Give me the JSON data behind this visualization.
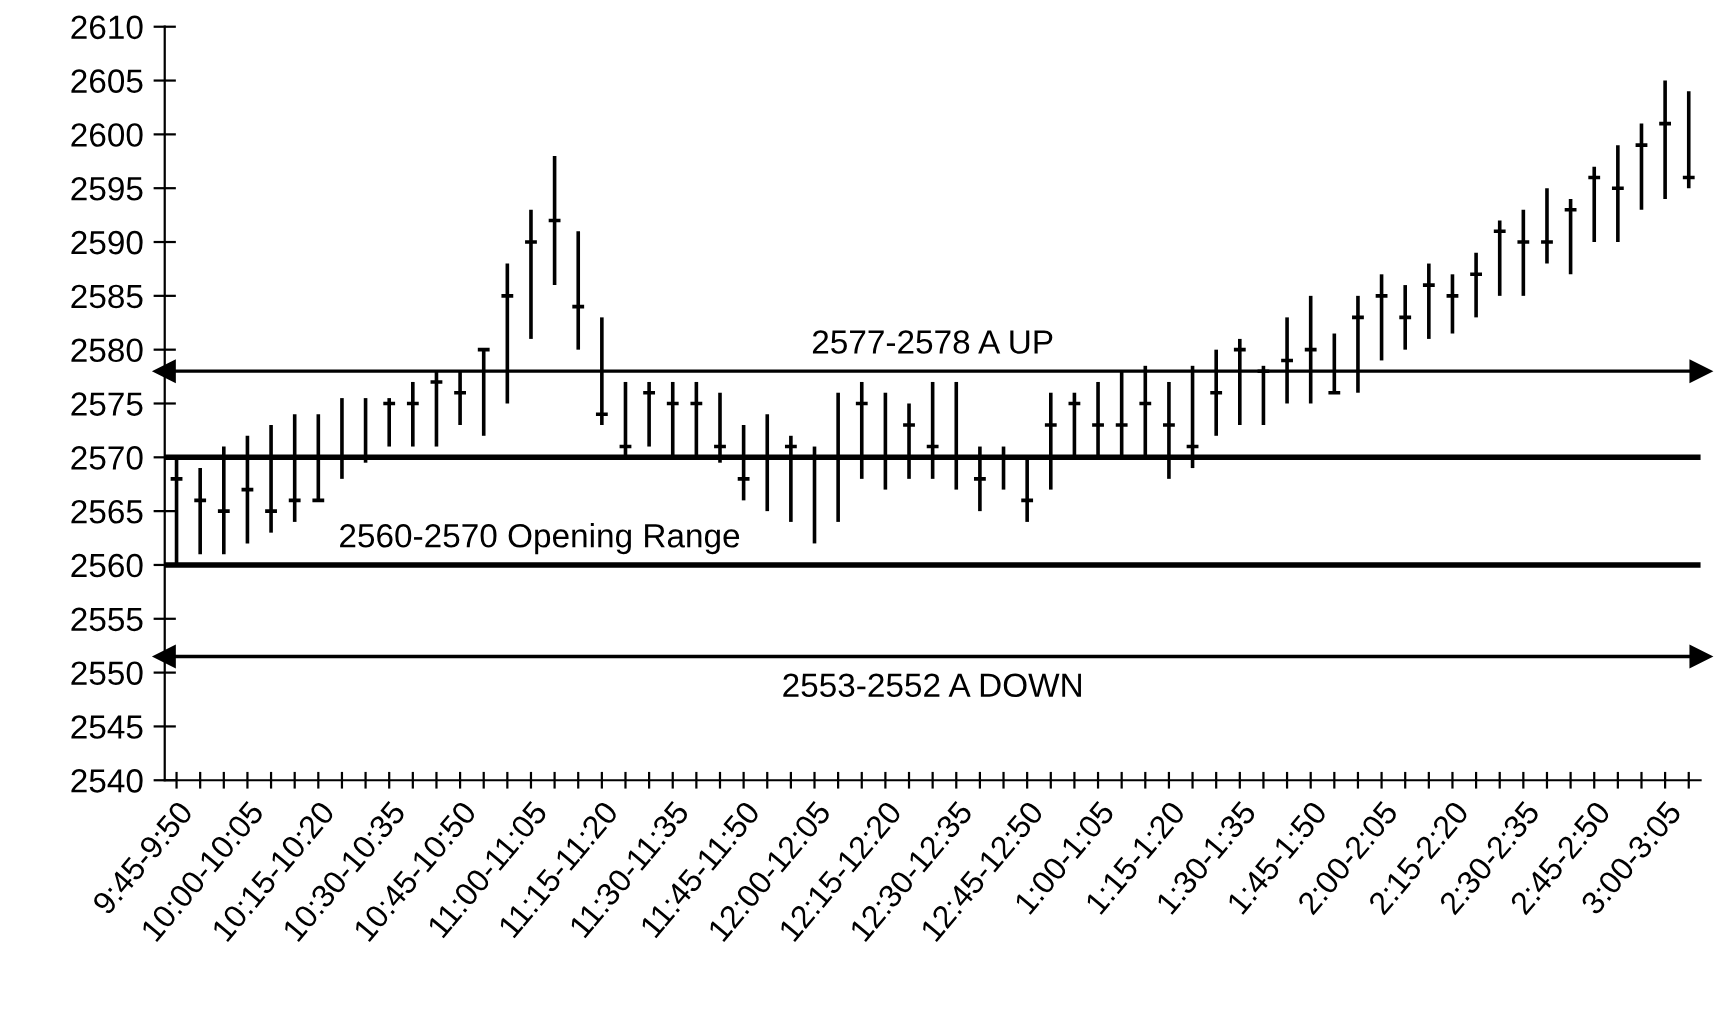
{
  "chart_data": {
    "type": "candlestick",
    "categories": [
      "9:45-9:50",
      null,
      null,
      "10:00-10:05",
      null,
      null,
      "10:15-10:20",
      null,
      null,
      "10:30-10:35",
      null,
      null,
      "10:45-10:50",
      null,
      null,
      "11:00-11:05",
      null,
      null,
      "11:15-11:20",
      null,
      null,
      "11:30-11:35",
      null,
      null,
      "11:45-11:50",
      null,
      null,
      "12:00-12:05",
      null,
      null,
      "12:15-12:20",
      null,
      null,
      "12:30-12:35",
      null,
      null,
      "12:45-12:50",
      null,
      null,
      "1:00-1:05",
      null,
      null,
      "1:15-1:20",
      null,
      null,
      "1:30-1:35",
      null,
      null,
      "1:45-1:50",
      null,
      null,
      "2:00-2:05",
      null,
      null,
      "2:15-2:20",
      null,
      null,
      "2:30-2:35",
      null,
      null,
      "2:45-2:50",
      null,
      null,
      "3:00-3:05",
      null
    ],
    "ohlc": [
      [
        2568,
        2570,
        2560,
        2568
      ],
      [
        2566,
        2569,
        2561,
        2566
      ],
      [
        2565,
        2571,
        2561,
        2565
      ],
      [
        2567,
        2572,
        2562,
        2567
      ],
      [
        2565,
        2573,
        2563,
        2565
      ],
      [
        2566,
        2574,
        2564,
        2566
      ],
      [
        2566,
        2574,
        2566,
        2566
      ],
      [
        2570,
        2575.5,
        2568,
        2570
      ],
      [
        2570,
        2575.5,
        2569.5,
        2570
      ],
      [
        2575,
        2575.5,
        2571,
        2575
      ],
      [
        2575,
        2577,
        2571,
        2575
      ],
      [
        2577,
        2578,
        2571,
        2577
      ],
      [
        2576,
        2578,
        2573,
        2576
      ],
      [
        2580,
        2580,
        2572,
        2580
      ],
      [
        2585,
        2588,
        2575,
        2585
      ],
      [
        2590,
        2593,
        2581,
        2590
      ],
      [
        2592,
        2598,
        2586,
        2592
      ],
      [
        2584,
        2591,
        2580,
        2584
      ],
      [
        2574,
        2583,
        2573,
        2574
      ],
      [
        2571,
        2577,
        2570,
        2571
      ],
      [
        2576,
        2577,
        2571,
        2576
      ],
      [
        2575,
        2577,
        2570,
        2575
      ],
      [
        2575,
        2577,
        2570,
        2575
      ],
      [
        2571,
        2576,
        2569.5,
        2571
      ],
      [
        2568,
        2573,
        2566,
        2568
      ],
      [
        2570,
        2574,
        2565,
        2570
      ],
      [
        2571,
        2572,
        2564,
        2571
      ],
      [
        2570,
        2571,
        2562,
        2570
      ],
      [
        2570,
        2576,
        2564,
        2570
      ],
      [
        2575,
        2577,
        2568,
        2575
      ],
      [
        2570,
        2576,
        2567,
        2570
      ],
      [
        2573,
        2575,
        2568,
        2573
      ],
      [
        2571,
        2577,
        2568,
        2571
      ],
      [
        2570,
        2577,
        2567,
        2570
      ],
      [
        2568,
        2571,
        2565,
        2568
      ],
      [
        2570,
        2571,
        2567,
        2570
      ],
      [
        2566,
        2570,
        2564,
        2566
      ],
      [
        2573,
        2576,
        2567,
        2573
      ],
      [
        2575,
        2576,
        2570,
        2575
      ],
      [
        2573,
        2577,
        2570,
        2573
      ],
      [
        2573,
        2578,
        2570,
        2573
      ],
      [
        2575,
        2578.5,
        2570,
        2575
      ],
      [
        2573,
        2577,
        2568,
        2573
      ],
      [
        2571,
        2578.5,
        2569,
        2571
      ],
      [
        2576,
        2580,
        2572,
        2576
      ],
      [
        2580,
        2581,
        2573,
        2580
      ],
      [
        2578,
        2578.5,
        2573,
        2578
      ],
      [
        2579,
        2583,
        2575,
        2579
      ],
      [
        2580,
        2585,
        2575,
        2580
      ],
      [
        2576,
        2581.5,
        2576,
        2576
      ],
      [
        2583,
        2585,
        2576,
        2583
      ],
      [
        2585,
        2587,
        2579,
        2585
      ],
      [
        2583,
        2586,
        2580,
        2583
      ],
      [
        2586,
        2588,
        2581,
        2586
      ],
      [
        2585,
        2587,
        2581.5,
        2585
      ],
      [
        2587,
        2589,
        2583,
        2587
      ],
      [
        2591,
        2592,
        2585,
        2591
      ],
      [
        2590,
        2593,
        2585,
        2590
      ],
      [
        2590,
        2595,
        2588,
        2590
      ],
      [
        2593,
        2594,
        2587,
        2593
      ],
      [
        2596,
        2597,
        2590,
        2596
      ],
      [
        2595,
        2599,
        2590,
        2595
      ],
      [
        2599,
        2601,
        2593,
        2599
      ],
      [
        2601,
        2605,
        2594,
        2601
      ],
      [
        2596,
        2604,
        2595,
        2596
      ]
    ],
    "color": "#000000",
    "ylim": [
      2540,
      2610
    ],
    "yticks": [
      2540,
      2545,
      2550,
      2555,
      2560,
      2565,
      2570,
      2575,
      2580,
      2585,
      2590,
      2595,
      2600,
      2605,
      2610
    ],
    "grid": false,
    "legend": false,
    "ref_lines": [
      {
        "axis": "y",
        "value": 2578,
        "label": "2577-2578 A UP",
        "color": "#000000"
      },
      {
        "axis": "y",
        "value": 2570,
        "label": null,
        "color": "#000000"
      },
      {
        "axis": "y",
        "value": 2560,
        "label": "2560-2570 Opening Range",
        "color": "#000000"
      },
      {
        "axis": "y",
        "value": 2551.5,
        "label": "2553-2552 A DOWN",
        "color": "#000000"
      }
    ]
  }
}
